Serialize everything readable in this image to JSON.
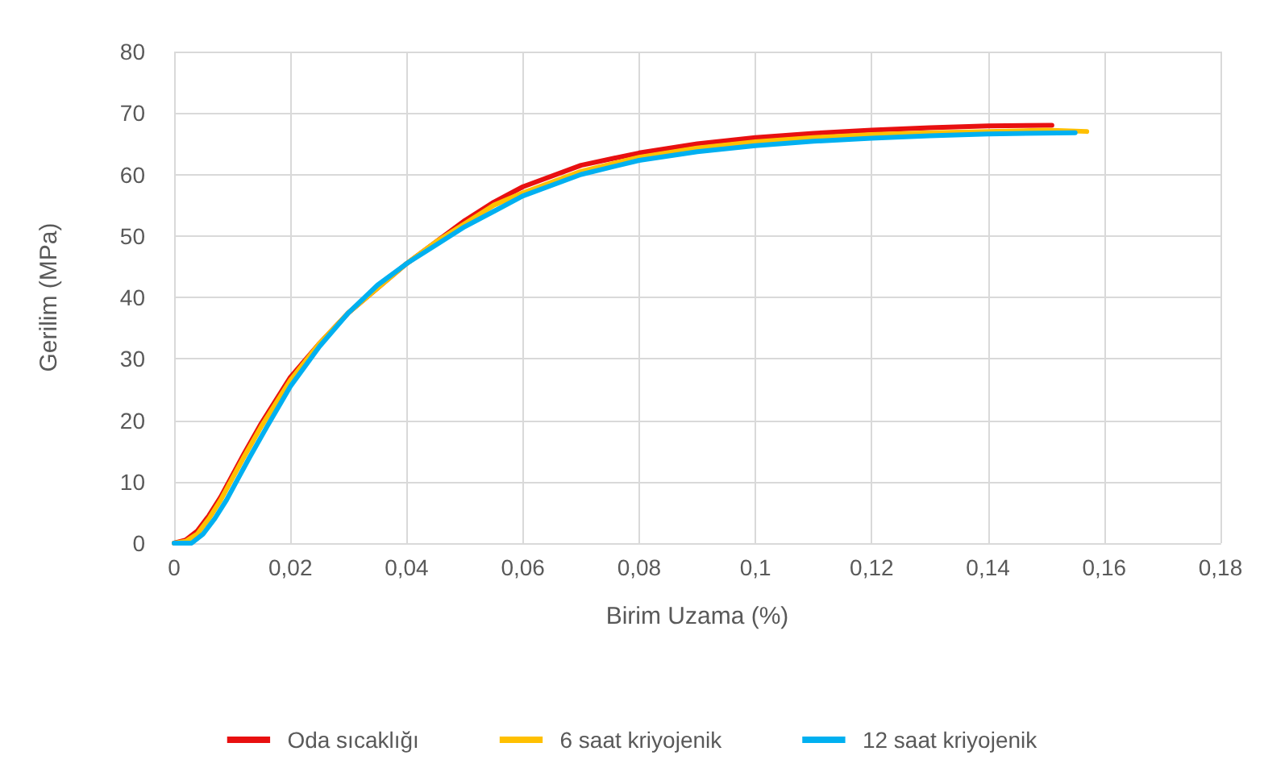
{
  "chart_data": {
    "type": "line",
    "xlabel": "Birim Uzama (%)",
    "ylabel": "Gerilim (MPa)",
    "xlim": [
      0,
      0.18
    ],
    "xticks": [
      0,
      {
        "value": 0.02,
        "label": "0,02"
      },
      {
        "value": 0.04,
        "label": "0,04"
      },
      {
        "value": 0.06,
        "label": "0,06"
      },
      {
        "value": 0.08,
        "label": "0,08"
      },
      {
        "value": 0.1,
        "label": "0,1"
      },
      {
        "value": 0.12,
        "label": "0,12"
      },
      {
        "value": 0.14,
        "label": "0,14"
      },
      {
        "value": 0.16,
        "label": "0,16"
      },
      {
        "value": 0.18,
        "label": "0,18"
      }
    ],
    "ylim": [
      0,
      80
    ],
    "yticks": [
      0,
      10,
      20,
      30,
      40,
      50,
      60,
      70,
      80
    ],
    "grid": true,
    "legend": "bottom",
    "marker": "none",
    "line_style": "solid",
    "series": [
      {
        "name": "Oda sıcaklığı",
        "color": "#e81010",
        "x": [
          0,
          0.002,
          0.004,
          0.006,
          0.008,
          0.01,
          0.012,
          0.015,
          0.02,
          0.025,
          0.03,
          0.035,
          0.04,
          0.045,
          0.05,
          0.055,
          0.06,
          0.07,
          0.08,
          0.09,
          0.1,
          0.11,
          0.12,
          0.13,
          0.14,
          0.151
        ],
        "values": [
          0,
          0.5,
          2,
          4.5,
          7.5,
          11,
          14.5,
          19.5,
          27,
          32.5,
          37.5,
          41.5,
          45.5,
          49,
          52.5,
          55.5,
          58,
          61.5,
          63.5,
          65,
          66,
          66.7,
          67.2,
          67.6,
          67.9,
          68
        ]
      },
      {
        "name": "6 saat kriyojenik",
        "color": "#ffc000",
        "x": [
          0,
          0.002,
          0.004,
          0.006,
          0.008,
          0.01,
          0.012,
          0.015,
          0.02,
          0.025,
          0.03,
          0.035,
          0.04,
          0.045,
          0.05,
          0.055,
          0.06,
          0.07,
          0.08,
          0.09,
          0.1,
          0.11,
          0.12,
          0.13,
          0.14,
          0.15,
          0.157
        ],
        "values": [
          0,
          0.3,
          1.5,
          4,
          7,
          10.5,
          14,
          19,
          26.5,
          32.5,
          37.5,
          41.5,
          45.5,
          49,
          52,
          55,
          57,
          60.5,
          62.8,
          64.3,
          65.3,
          66,
          66.5,
          66.8,
          67,
          67.2,
          67
        ]
      },
      {
        "name": "12 saat kriyojenik",
        "color": "#00b0f0",
        "x": [
          0,
          0.003,
          0.005,
          0.007,
          0.009,
          0.011,
          0.013,
          0.016,
          0.02,
          0.025,
          0.03,
          0.035,
          0.04,
          0.045,
          0.05,
          0.055,
          0.06,
          0.07,
          0.08,
          0.09,
          0.1,
          0.11,
          0.12,
          0.13,
          0.14,
          0.155
        ],
        "values": [
          0,
          0,
          1.5,
          4,
          7,
          10.5,
          14,
          19,
          25.5,
          32,
          37.5,
          42,
          45.5,
          48.5,
          51.5,
          54,
          56.5,
          60,
          62.3,
          63.7,
          64.7,
          65.4,
          65.9,
          66.3,
          66.6,
          66.8
        ]
      }
    ]
  }
}
